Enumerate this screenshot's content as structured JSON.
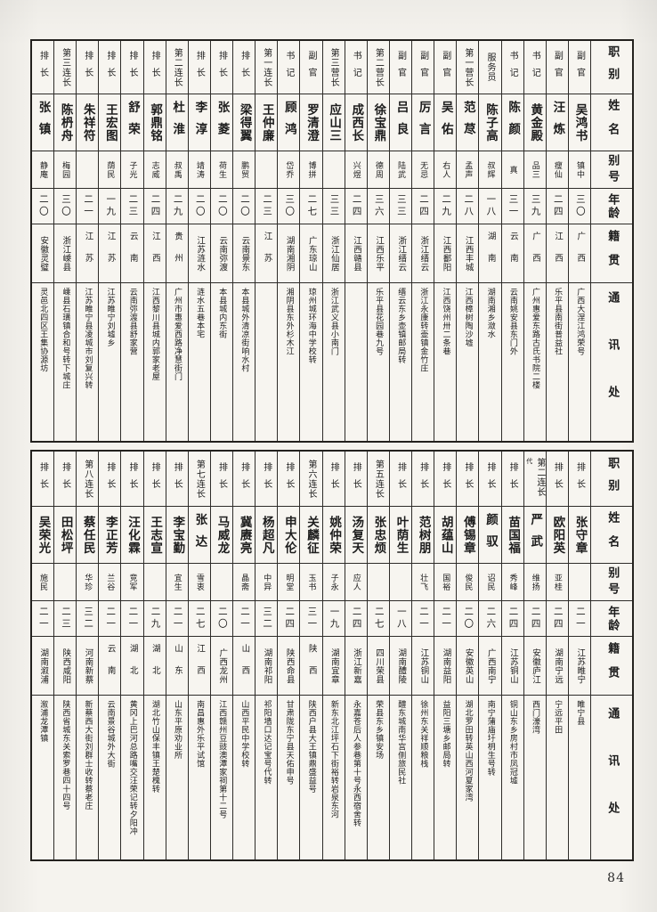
{
  "page": {
    "number": "84"
  },
  "headers": [
    "职别",
    "姓名",
    "别号",
    "年龄",
    "籍贯",
    "通讯处"
  ],
  "tables": [
    {
      "id": "t1",
      "people": [
        {
          "role": "副官",
          "name": "吴鸿书",
          "alias": "镇中",
          "age": "三〇",
          "origin": "广西",
          "address": "广西大涅江鸿荣号"
        },
        {
          "role": "副官",
          "name": "汪炼",
          "alias": "瘦仙",
          "age": "二四",
          "origin": "江西",
          "address": "乐平县南街普益社"
        },
        {
          "role": "书记",
          "name": "黄金殿",
          "alias": "品三",
          "age": "三九",
          "origin": "广西",
          "address": "广州惠爱东路古氏书院二楼"
        },
        {
          "role": "书记",
          "name": "陈颜",
          "alias": "真",
          "age": "三一",
          "origin": "云南",
          "address": "云南姚安县东门外"
        },
        {
          "role": "服务员",
          "name": "陈子高",
          "alias": "叔辉",
          "age": "一八",
          "origin": "湖南",
          "address": "湖南湘乡潋水"
        },
        {
          "role": "第一营长",
          "name": "范荩",
          "alias": "孟声",
          "age": "二八",
          "origin": "江西丰城",
          "address": "江西樟树陶沙墟"
        },
        {
          "role": "副官",
          "name": "吴佑",
          "alias": "右人",
          "age": "二九",
          "origin": "江西鄱阳",
          "address": "江西饶州卅二条巷"
        },
        {
          "role": "副官",
          "name": "厉言",
          "alias": "无忌",
          "age": "二四",
          "origin": "浙江缙云",
          "address": "浙江永康转壶镇金竹庄"
        },
        {
          "role": "副官",
          "name": "吕良",
          "alias": "陆武",
          "age": "三三",
          "origin": "浙江缙云",
          "address": "缙云东乡壶镇邮局转"
        },
        {
          "role": "第二营长",
          "name": "徐宝鼎",
          "alias": "德周",
          "age": "三六",
          "origin": "江西乐平",
          "address": "乐平县花园巷九号"
        },
        {
          "role": "书记",
          "name": "成西长",
          "alias": "兴煜",
          "age": "二四",
          "origin": "江西赣县",
          "address": ""
        },
        {
          "role": "第三营长",
          "name": "应山三",
          "alias": "",
          "age": "三三",
          "origin": "浙江仙居",
          "address": "浙江武义县小南门"
        },
        {
          "role": "副官",
          "name": "罗清澄",
          "alias": "博拼",
          "age": "二七",
          "origin": "广东琼山",
          "address": "琼州城环海中学校转"
        },
        {
          "role": "书记",
          "name": "顾鸿",
          "alias": "岱乔",
          "age": "三〇",
          "origin": "湖南湘阴",
          "address": "湘阴县东外杉木江"
        },
        {
          "role": "第一连长",
          "name": "王仲廉",
          "alias": "",
          "age": "二三",
          "origin": "江苏",
          "address": ""
        },
        {
          "role": "排长",
          "name": "梁得翼",
          "alias": "鹏贸",
          "age": "二〇",
          "origin": "云南景东",
          "address": "本县城外清凉街响水村"
        },
        {
          "role": "排长",
          "name": "张菱",
          "alias": "荷生",
          "age": "二〇",
          "origin": "云南弥渡",
          "address": "本县城内东街"
        },
        {
          "role": "排长",
          "name": "李淳",
          "alias": "靖涛",
          "age": "二〇",
          "origin": "江苏涟水",
          "address": "涟水五巷本宅"
        },
        {
          "role": "第二连长",
          "name": "杜淮",
          "alias": "叔禹",
          "age": "二九",
          "origin": "贵州",
          "address": "广州市惠爱西路净慧街门"
        },
        {
          "role": "排长",
          "name": "郭鼎铭",
          "alias": "志威",
          "age": "二四",
          "origin": "江西",
          "address": "江西黎川县城内郭家老屋"
        },
        {
          "role": "排长",
          "name": "舒荣",
          "alias": "子光",
          "age": "二三",
          "origin": "云南",
          "address": "云南弥渡县舒家营"
        },
        {
          "role": "排长",
          "name": "王宏图",
          "alias": "荫民",
          "age": "一九",
          "origin": "江苏",
          "address": "江苏睢宁刘墟乡"
        },
        {
          "role": "排长",
          "name": "朱祥符",
          "alias": "",
          "age": "二一",
          "origin": "江苏",
          "address": "江苏睢宁县凌城市刘复兴转"
        },
        {
          "role": "第三连长",
          "name": "陈枬舟",
          "alias": "梅园",
          "age": "三〇",
          "origin": "浙江嵊县",
          "address": "嵊县石璜镇合和号转下城庄"
        },
        {
          "role": "排长",
          "name": "张镇",
          "alias": "静庵",
          "age": "二〇",
          "origin": "安徽灵璧",
          "address": "灵邑北四区王集协源坊"
        }
      ]
    },
    {
      "id": "t2",
      "people": [
        {
          "role": "排长",
          "name": "张守章",
          "alias": "",
          "age": "二一",
          "origin": "江苏睢宁",
          "address": "睢宁县"
        },
        {
          "role": "排长",
          "name": "欧阳英",
          "alias": "亚桂",
          "age": "二四",
          "origin": "湖南宁远",
          "address": "宁远平田"
        },
        {
          "role": "第二连长",
          "note": "代",
          "name": "严武",
          "alias": "维扬",
          "age": "二四",
          "origin": "安徽庐江",
          "address": "西门濠湾"
        },
        {
          "role": "排长",
          "name": "苗国福",
          "alias": "秀峰",
          "age": "二四",
          "origin": "江苏铜山",
          "address": "铜山东乡房村市凤冠墟"
        },
        {
          "role": "排长",
          "name": "颜驭",
          "alias": "诏民",
          "age": "二六",
          "origin": "广西南宁",
          "address": "南宁蒲庙圩枂生号转"
        },
        {
          "role": "排长",
          "name": "傅锡章",
          "alias": "俊民",
          "age": "二〇",
          "origin": "安徽英山",
          "address": "湖北罗田转英山西河夏家湾"
        },
        {
          "role": "排长",
          "name": "胡蕴山",
          "alias": "国裕",
          "age": "二一",
          "origin": "湖南益阳",
          "address": "益阳三塘乡邮局转"
        },
        {
          "role": "排长",
          "name": "范树朋",
          "alias": "壮飞",
          "age": "二一",
          "origin": "江苏铜山",
          "address": "徐州东关祥顺粮栈"
        },
        {
          "role": "排长",
          "name": "叶荫生",
          "alias": "",
          "age": "一八",
          "origin": "湖南醴陵",
          "address": "醴东城南华宫侧旅民社"
        },
        {
          "role": "第五连长",
          "name": "张忠烦",
          "alias": "",
          "age": "二七",
          "origin": "四川荣县",
          "address": "荣县东乡镇安场"
        },
        {
          "role": "排长",
          "name": "汤复天",
          "alias": "应人",
          "age": "二四",
          "origin": "浙江新嘉",
          "address": "永嘉苍后人参巷第十号永西宿舍转"
        },
        {
          "role": "排长",
          "name": "姚仲荣",
          "alias": "子永",
          "age": "一九",
          "origin": "湖南宜章",
          "address": "新东北江坪石下街裕转岩泉东河"
        },
        {
          "role": "第六连长",
          "name": "关麟征",
          "alias": "玉书",
          "age": "三一",
          "origin": "陕西",
          "address": "陕西户县大王镇鼎盛益号"
        },
        {
          "role": "排长",
          "name": "申大伦",
          "alias": "明堂",
          "age": "二四",
          "origin": "陕西命县",
          "address": "甘肃陇东宁县天佑申号"
        },
        {
          "role": "排长",
          "name": "杨超凡",
          "alias": "中异",
          "age": "三二",
          "origin": "湖南祁阳",
          "address": "祁阳墙口达记宝号代转"
        },
        {
          "role": "排长",
          "name": "冀赓亮",
          "alias": "晶斋",
          "age": "二一",
          "origin": "山西",
          "address": "山西平民中学校转"
        },
        {
          "role": "排长",
          "name": "马威龙",
          "alias": "",
          "age": "二〇",
          "origin": "广西龙州",
          "address": "江西赣州豆豉澳潭家祠第十二号"
        },
        {
          "role": "第七连长",
          "name": "张达",
          "alias": "雪衷",
          "age": "二七",
          "origin": "江西",
          "address": "南昌惠外乐平试馆"
        },
        {
          "role": "排长",
          "name": "李宝勤",
          "alias": "宜生",
          "age": "二一",
          "origin": "山东",
          "address": "山东平原劝业所"
        },
        {
          "role": "排长",
          "name": "王志宣",
          "alias": "",
          "age": "二九",
          "origin": "湖北",
          "address": "湖北竹山保丰镇王楚槐转"
        },
        {
          "role": "排长",
          "name": "汪化霖",
          "alias": "竞军",
          "age": "二一",
          "origin": "湖北",
          "address": "黄冈上巴河总路嘴交汪荣记转夕阳冲"
        },
        {
          "role": "排长",
          "name": "李正芳",
          "alias": "兰谷",
          "age": "二一",
          "origin": "云南",
          "address": "云南景谷城外大街"
        },
        {
          "role": "第八连长",
          "name": "蔡任民",
          "alias": "华珍",
          "age": "三二",
          "origin": "河南新蔡",
          "address": "新蔡西大街刘群士收转蔡老庄"
        },
        {
          "role": "排长",
          "name": "田松坪",
          "alias": "",
          "age": "二三",
          "origin": "陕西咸阳",
          "address": "陕西省城东关索罗巷四十四号"
        },
        {
          "role": "排长",
          "name": "吴荣光",
          "alias": "施民",
          "age": "二一",
          "origin": "湖南溆浦",
          "address": "溆浦龙潭镇"
        }
      ]
    }
  ]
}
